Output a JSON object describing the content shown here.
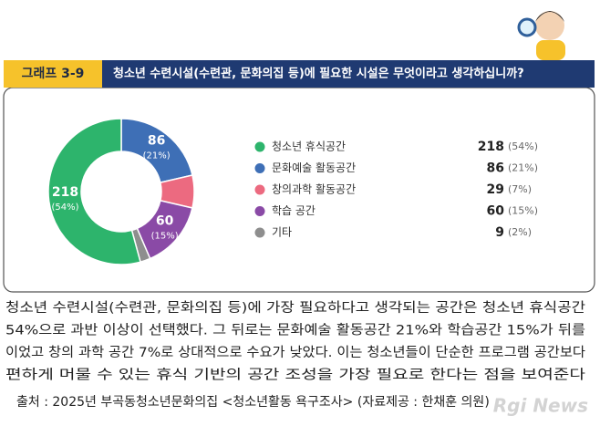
{
  "header": {
    "label": "그래프 3-9",
    "title": "청소년 수련시설(수련관, 문화의집 등)에 필요한 시설은 무엇이라고 생각하십니까?"
  },
  "chart_data": {
    "type": "donut",
    "categories": [
      "청소년 휴식공간",
      "문화예술 활동공간",
      "창의과학 활동공간",
      "학습 공간",
      "기타"
    ],
    "values": [
      218,
      86,
      29,
      60,
      9
    ],
    "percent_labels": [
      "(54%)",
      "(21%)",
      "(7%)",
      "(15%)",
      "(2%)"
    ],
    "colors": [
      "#2db46c",
      "#3e6fb6",
      "#ec6a80",
      "#8a4aa6",
      "#8e8e8e"
    ],
    "slice_order": [
      1,
      2,
      3,
      4,
      0
    ]
  },
  "body": [
    "청소년 수련시설(수련관, 문화의집 등)에 가장 필요하다고 생각되는 공간은 청소년 휴식공간",
    "54%으로 과반 이상이 선택했다. 그 뒤로는 문화예술 활동공간 21%와 학습공간 15%가 뒤를",
    "이었고 창의 과학 공간 7%로 상대적으로 수요가 낮았다. 이는 청소년들이 단순한 프로그램 공간보다",
    "편하게 머물 수 있는 휴식 기반의 공간 조성을 가장 필요로 한다는 점을 보여준다"
  ],
  "source": "출처 : 2025년 부곡동청소년문화의집 <청소년활동 욕구조사> (자료제공 : 한채훈 의원)",
  "watermark": "Rgi News"
}
